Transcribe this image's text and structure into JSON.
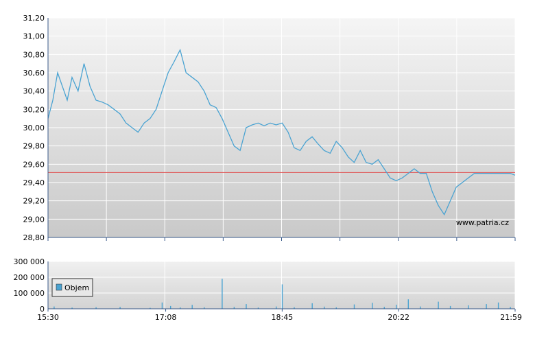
{
  "chart_data": [
    {
      "type": "line",
      "title": "",
      "xlabel": "",
      "ylabel": "",
      "x_ticks": [
        "15:30",
        "17:08",
        "18:45",
        "20:22",
        "21:59"
      ],
      "x_range": [
        "15:30",
        "21:59"
      ],
      "y_ticks": [
        "31,20",
        "31,00",
        "30,80",
        "30,60",
        "30,40",
        "30,20",
        "30,00",
        "29,80",
        "29,60",
        "29,40",
        "29,20",
        "29,00",
        "28,80"
      ],
      "ylim": [
        28.8,
        31.2
      ],
      "reference_line": 29.51,
      "watermark": "www.patria.cz",
      "grid": true,
      "colors": {
        "line": "#4aa3d2",
        "reference": "#e05050",
        "grid": "#ffffff",
        "axis": "#3a5a8a"
      },
      "series": [
        {
          "x": [
            "15:30",
            "15:34",
            "15:38",
            "15:42",
            "15:46",
            "15:50",
            "15:55",
            "16:00",
            "16:05",
            "16:10",
            "16:15",
            "16:20",
            "16:25",
            "16:30",
            "16:35",
            "16:40",
            "16:45",
            "16:50",
            "16:55",
            "17:00",
            "17:05",
            "17:10",
            "17:15",
            "17:20",
            "17:25",
            "17:30",
            "17:35",
            "17:40",
            "17:45",
            "17:50",
            "17:55",
            "18:00",
            "18:05",
            "18:10",
            "18:15",
            "18:20",
            "18:25",
            "18:30",
            "18:35",
            "18:40",
            "18:45",
            "18:50",
            "18:55",
            "19:00",
            "19:05",
            "19:10",
            "19:15",
            "19:20",
            "19:25",
            "19:30",
            "19:35",
            "19:40",
            "19:45",
            "19:50",
            "19:55",
            "20:00",
            "20:05",
            "20:10",
            "20:15",
            "20:20",
            "20:25",
            "20:30",
            "20:35",
            "20:40",
            "20:45",
            "20:50",
            "20:55",
            "21:00",
            "21:05",
            "21:10",
            "21:15",
            "21:20",
            "21:25",
            "21:30",
            "21:35",
            "21:40",
            "21:45",
            "21:50",
            "21:55",
            "21:59"
          ],
          "y": [
            30.1,
            30.3,
            30.6,
            30.45,
            30.3,
            30.55,
            30.4,
            30.7,
            30.45,
            30.3,
            30.28,
            30.25,
            30.2,
            30.15,
            30.05,
            30.0,
            29.95,
            30.05,
            30.1,
            30.2,
            30.4,
            30.6,
            30.72,
            30.85,
            30.6,
            30.55,
            30.5,
            30.4,
            30.25,
            30.22,
            30.1,
            29.95,
            29.8,
            29.75,
            30.0,
            30.03,
            30.05,
            30.02,
            30.05,
            30.03,
            30.05,
            29.95,
            29.78,
            29.75,
            29.85,
            29.9,
            29.82,
            29.75,
            29.72,
            29.85,
            29.78,
            29.68,
            29.62,
            29.75,
            29.62,
            29.6,
            29.65,
            29.55,
            29.45,
            29.42,
            29.45,
            29.5,
            29.55,
            29.5,
            29.5,
            29.3,
            29.15,
            29.05,
            29.2,
            29.35,
            29.4,
            29.45,
            29.5,
            29.5,
            29.5,
            29.5,
            29.5,
            29.5,
            29.5,
            29.48
          ]
        }
      ]
    },
    {
      "type": "bar",
      "title": "",
      "xlabel": "",
      "ylabel": "",
      "legend": "Objem",
      "legend_position": "left",
      "x_ticks": [
        "15:30",
        "17:08",
        "18:45",
        "20:22",
        "21:59"
      ],
      "x_range": [
        "15:30",
        "21:59"
      ],
      "y_ticks": [
        "300 000",
        "200 000",
        "100 000",
        "0"
      ],
      "ylim": [
        0,
        300000
      ],
      "grid": true,
      "colors": {
        "bar": "#4aa3d2",
        "grid": "#ffffff"
      },
      "series": [
        {
          "name": "Objem",
          "x": [
            "15:35",
            "15:50",
            "16:10",
            "16:30",
            "16:55",
            "17:05",
            "17:12",
            "17:20",
            "17:30",
            "17:40",
            "17:55",
            "18:05",
            "18:15",
            "18:25",
            "18:40",
            "18:45",
            "18:55",
            "19:10",
            "19:20",
            "19:30",
            "19:45",
            "20:00",
            "20:10",
            "20:20",
            "20:30",
            "20:40",
            "20:55",
            "21:05",
            "21:20",
            "21:35",
            "21:45",
            "21:55"
          ],
          "values": [
            15000,
            8000,
            10000,
            12000,
            6000,
            40000,
            18000,
            9000,
            25000,
            10000,
            190000,
            12000,
            30000,
            8000,
            15000,
            155000,
            10000,
            35000,
            14000,
            9000,
            28000,
            38000,
            12000,
            26000,
            60000,
            15000,
            45000,
            18000,
            22000,
            30000,
            40000,
            12000
          ]
        }
      ]
    }
  ]
}
